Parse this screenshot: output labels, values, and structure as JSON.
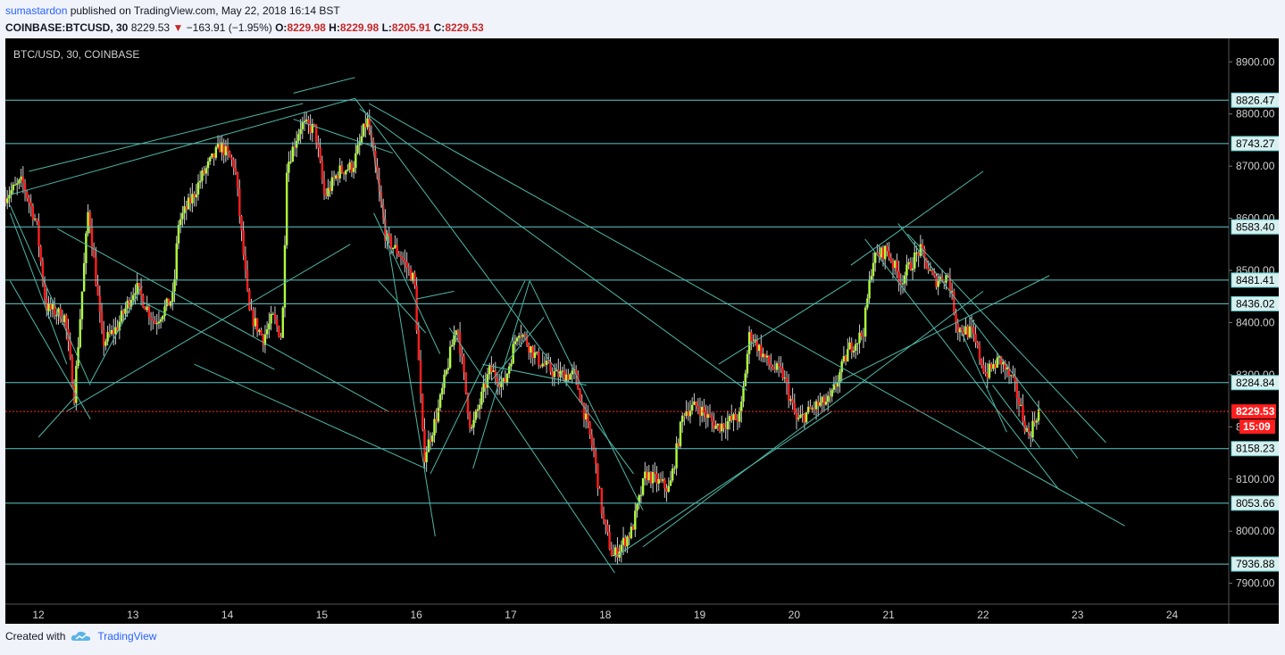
{
  "header": {
    "author": "sumastardon",
    "published": " published on TradingView.com, May 22, 2018 16:14 BST",
    "symbol": "COINBASE:BTCUSD, 30",
    "last": "8229.53",
    "change_arrow": "▼",
    "change": "−163.91 (−1.95%)",
    "o_label": "O:",
    "o": "8229.98",
    "h_label": "H:",
    "h": "8229.98",
    "l_label": "L:",
    "l": "8205.91",
    "c_label": "C:",
    "c": "8229.53"
  },
  "footer": {
    "created_with": "Created with",
    "brand": "TradingView"
  },
  "colors": {
    "background": "#000000",
    "up": "#b0ff3c",
    "down": "#ff1e1e",
    "wick": "#cccccc",
    "levels": "#62c9c9",
    "trend": "#4fb8a8",
    "price_line": "#ff2a2a",
    "axis_text": "#d0d0d0"
  },
  "chart_data": {
    "type": "candlestick",
    "title": "BTC/USD, 30, COINBASE",
    "ylim": [
      7860,
      8945
    ],
    "y_ticks": [
      7900,
      8000,
      8100,
      8200,
      8300,
      8400,
      8500,
      8600,
      8700,
      8800,
      8900
    ],
    "y_tick_labels": [
      "7900.00",
      "8000.00",
      "8100.00",
      "8200.00",
      "8300.00",
      "8400.00",
      "8500.00",
      "8600.00",
      "8700.00",
      "8800.00",
      "8900.00"
    ],
    "xlim": [
      11.65,
      24.6
    ],
    "x_ticks": [
      12,
      13,
      14,
      15,
      16,
      17,
      18,
      19,
      20,
      21,
      22,
      23,
      24
    ],
    "x_tick_labels": [
      "12",
      "13",
      "14",
      "15",
      "16",
      "17",
      "18",
      "19",
      "20",
      "21",
      "22",
      "23",
      "24"
    ],
    "levels": [
      8826.47,
      8743.27,
      8583.4,
      8481.41,
      8436.02,
      8284.84,
      8158.23,
      8053.66,
      7936.88
    ],
    "level_labels": [
      "8826.47",
      "8743.27",
      "8583.40",
      "8481.41",
      "8436.02",
      "8284.84",
      "8158.23",
      "8053.66",
      "7936.88"
    ],
    "last_price": 8229.53,
    "last_price_label": "8229.53",
    "countdown": "15:09",
    "price_path": [
      [
        11.65,
        8640
      ],
      [
        11.85,
        8670
      ],
      [
        12.0,
        8590
      ],
      [
        12.1,
        8430
      ],
      [
        12.3,
        8410
      ],
      [
        12.4,
        8260
      ],
      [
        12.55,
        8620
      ],
      [
        12.7,
        8360
      ],
      [
        12.85,
        8390
      ],
      [
        13.05,
        8470
      ],
      [
        13.25,
        8400
      ],
      [
        13.45,
        8450
      ],
      [
        13.5,
        8590
      ],
      [
        13.65,
        8640
      ],
      [
        13.75,
        8680
      ],
      [
        13.95,
        8740
      ],
      [
        14.1,
        8700
      ],
      [
        14.25,
        8420
      ],
      [
        14.4,
        8370
      ],
      [
        14.5,
        8410
      ],
      [
        14.6,
        8370
      ],
      [
        14.65,
        8700
      ],
      [
        14.8,
        8780
      ],
      [
        14.95,
        8770
      ],
      [
        15.05,
        8640
      ],
      [
        15.2,
        8690
      ],
      [
        15.35,
        8700
      ],
      [
        15.5,
        8790
      ],
      [
        15.6,
        8680
      ],
      [
        15.7,
        8560
      ],
      [
        15.85,
        8530
      ],
      [
        16.0,
        8480
      ],
      [
        16.1,
        8140
      ],
      [
        16.25,
        8230
      ],
      [
        16.45,
        8400
      ],
      [
        16.6,
        8190
      ],
      [
        16.8,
        8310
      ],
      [
        16.95,
        8280
      ],
      [
        17.1,
        8390
      ],
      [
        17.3,
        8330
      ],
      [
        17.5,
        8300
      ],
      [
        17.7,
        8300
      ],
      [
        17.9,
        8150
      ],
      [
        18.0,
        8020
      ],
      [
        18.1,
        7950
      ],
      [
        18.3,
        8000
      ],
      [
        18.45,
        8110
      ],
      [
        18.7,
        8080
      ],
      [
        18.85,
        8230
      ],
      [
        19.0,
        8240
      ],
      [
        19.2,
        8200
      ],
      [
        19.45,
        8220
      ],
      [
        19.55,
        8380
      ],
      [
        19.75,
        8320
      ],
      [
        19.9,
        8300
      ],
      [
        20.05,
        8210
      ],
      [
        20.25,
        8240
      ],
      [
        20.4,
        8250
      ],
      [
        20.6,
        8350
      ],
      [
        20.75,
        8380
      ],
      [
        20.85,
        8520
      ],
      [
        21.0,
        8540
      ],
      [
        21.15,
        8480
      ],
      [
        21.35,
        8540
      ],
      [
        21.5,
        8480
      ],
      [
        21.65,
        8490
      ],
      [
        21.75,
        8390
      ],
      [
        21.9,
        8380
      ],
      [
        22.05,
        8300
      ],
      [
        22.2,
        8330
      ],
      [
        22.35,
        8280
      ],
      [
        22.5,
        8180
      ],
      [
        22.6,
        8229.53
      ]
    ],
    "trend_lines": [
      [
        [
          11.7,
          8610
        ],
        [
          12.3,
          8320
        ]
      ],
      [
        [
          11.7,
          8480
        ],
        [
          12.55,
          8215
        ]
      ],
      [
        [
          11.7,
          8625
        ],
        [
          12.55,
          8280
        ]
      ],
      [
        [
          11.9,
          8690
        ],
        [
          14.8,
          8820
        ]
      ],
      [
        [
          11.7,
          8645
        ],
        [
          15.35,
          8830
        ]
      ],
      [
        [
          12.3,
          8230
        ],
        [
          15.3,
          8550
        ]
      ],
      [
        [
          12.55,
          8285
        ],
        [
          13.1,
          8470
        ]
      ],
      [
        [
          13.1,
          8440
        ],
        [
          14.5,
          8310
        ]
      ],
      [
        [
          12.2,
          8580
        ],
        [
          15.7,
          8230
        ]
      ],
      [
        [
          13.65,
          8320
        ],
        [
          16.1,
          8120
        ]
      ],
      [
        [
          14.7,
          8840
        ],
        [
          15.35,
          8870
        ]
      ],
      [
        [
          14.7,
          8790
        ],
        [
          15.75,
          8725
        ]
      ],
      [
        [
          15.4,
          8810
        ],
        [
          19.5,
          8270
        ]
      ],
      [
        [
          15.5,
          8820
        ],
        [
          23.5,
          8010
        ]
      ],
      [
        [
          15.5,
          8780
        ],
        [
          16.2,
          7990
        ]
      ],
      [
        [
          15.55,
          8610
        ],
        [
          16.25,
          8340
        ]
      ],
      [
        [
          15.35,
          8830
        ],
        [
          18.3,
          8110
        ]
      ],
      [
        [
          16.15,
          8110
        ],
        [
          17.15,
          8480
        ]
      ],
      [
        [
          16.35,
          8390
        ],
        [
          18.1,
          7920
        ]
      ],
      [
        [
          16.6,
          8120
        ],
        [
          17.2,
          8480
        ]
      ],
      [
        [
          16.7,
          8320
        ],
        [
          17.8,
          8280
        ]
      ],
      [
        [
          16.8,
          8290
        ],
        [
          17.35,
          8410
        ]
      ],
      [
        [
          17.2,
          8480
        ],
        [
          18.4,
          8040
        ]
      ],
      [
        [
          18.1,
          7950
        ],
        [
          20.4,
          8230
        ]
      ],
      [
        [
          19.2,
          8320
        ],
        [
          20.6,
          8480
        ]
      ],
      [
        [
          18.4,
          7970
        ],
        [
          22.0,
          8460
        ]
      ],
      [
        [
          20.4,
          8280
        ],
        [
          22.7,
          8490
        ]
      ],
      [
        [
          20.6,
          8510
        ],
        [
          22.0,
          8690
        ]
      ],
      [
        [
          20.75,
          8560
        ],
        [
          22.8,
          8080
        ]
      ],
      [
        [
          21.1,
          8590
        ],
        [
          23.0,
          8140
        ]
      ],
      [
        [
          21.2,
          8570
        ],
        [
          23.3,
          8170
        ]
      ],
      [
        [
          21.75,
          8390
        ],
        [
          22.25,
          8190
        ]
      ],
      [
        [
          22.1,
          8280
        ],
        [
          22.6,
          8160
        ]
      ],
      [
        [
          15.6,
          8480
        ],
        [
          16.1,
          8380
        ]
      ],
      [
        [
          16.0,
          8445
        ],
        [
          16.4,
          8460
        ]
      ],
      [
        [
          12.0,
          8180
        ],
        [
          12.4,
          8260
        ]
      ]
    ]
  }
}
